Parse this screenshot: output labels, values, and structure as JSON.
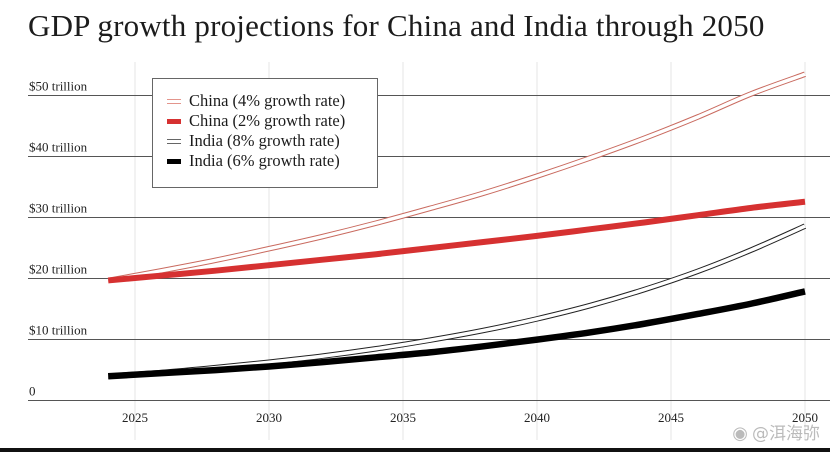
{
  "title": "GDP growth projections for China and India through 2050",
  "legend": [
    {
      "label": "China (4% growth rate)",
      "color": "#d9776c",
      "style": "double"
    },
    {
      "label": "China (2% growth rate)",
      "color": "#d63131",
      "style": "thick"
    },
    {
      "label": "India (8% growth rate)",
      "color": "#111111",
      "style": "double"
    },
    {
      "label": "India (6% growth rate)",
      "color": "#000000",
      "style": "thick"
    }
  ],
  "watermark": {
    "icon": "weibo-icon",
    "text": "@洱海弥"
  },
  "chart_data": {
    "type": "line",
    "title": "GDP growth projections for China and India through 2050",
    "xlabel": "",
    "ylabel": "",
    "x": [
      2024,
      2026,
      2028,
      2030,
      2032,
      2034,
      2036,
      2038,
      2040,
      2042,
      2044,
      2046,
      2048,
      2050
    ],
    "xlim": [
      2022.8,
      2050.5
    ],
    "ylim": [
      0,
      50
    ],
    "x_ticks": [
      2025,
      2030,
      2035,
      2040,
      2045,
      2050
    ],
    "x_tick_labels": [
      "2025",
      "2030",
      "2035",
      "2040",
      "2045",
      "2050"
    ],
    "y_ticks": [
      0,
      10,
      20,
      30,
      40,
      50
    ],
    "y_tick_labels": [
      "0",
      "$10 trillion",
      "$20 trillion",
      "$30 trillion",
      "$40 trillion",
      "$50 trillion"
    ],
    "grid": true,
    "legend_position": "top-left",
    "series": [
      {
        "name": "China (4% growth rate)",
        "color": "#d9776c",
        "style": "double",
        "values": [
          19.6,
          21.2,
          22.9,
          24.8,
          26.8,
          29.0,
          31.4,
          33.9,
          36.7,
          39.7,
          42.9,
          46.4,
          50.2,
          53.4
        ]
      },
      {
        "name": "China (2% growth rate)",
        "color": "#d63131",
        "style": "thick",
        "values": [
          19.6,
          20.4,
          21.2,
          22.1,
          23.0,
          23.9,
          24.9,
          25.9,
          26.9,
          28.0,
          29.1,
          30.3,
          31.5,
          32.5
        ]
      },
      {
        "name": "India (8% growth rate)",
        "color": "#111111",
        "style": "double",
        "values": [
          3.9,
          4.5,
          5.3,
          6.2,
          7.2,
          8.4,
          9.8,
          11.4,
          13.3,
          15.5,
          18.1,
          21.1,
          24.6,
          28.5
        ]
      },
      {
        "name": "India (6% growth rate)",
        "color": "#000000",
        "style": "thick",
        "values": [
          3.9,
          4.4,
          4.9,
          5.5,
          6.2,
          7.0,
          7.8,
          8.8,
          9.9,
          11.1,
          12.5,
          14.1,
          15.8,
          17.8
        ]
      }
    ]
  }
}
